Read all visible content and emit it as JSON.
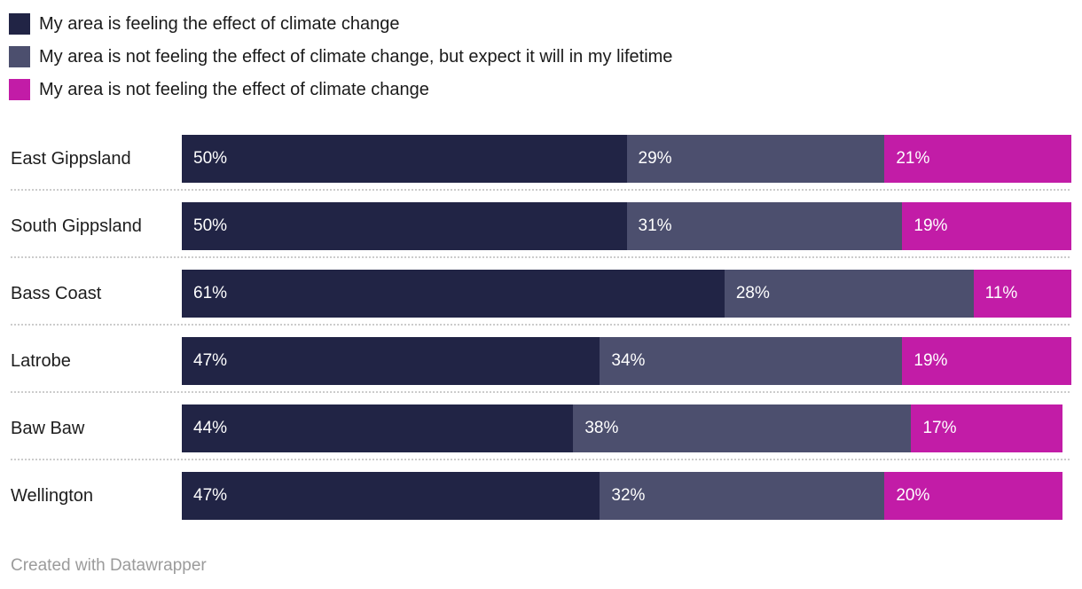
{
  "legend": {
    "items": [
      {
        "label": "My area is feeling the effect of climate change",
        "color": "#212445"
      },
      {
        "label": "My area is not feeling the effect of climate change, but expect it will in my lifetime",
        "color": "#4c4f6e"
      },
      {
        "label": "My area is not feeling the effect of climate change",
        "color": "#c21ca7"
      }
    ]
  },
  "footer": {
    "text": "Created with Datawrapper"
  },
  "colors": {
    "feeling": "#212445",
    "not_feeling_but_expect": "#4c4f6e",
    "not_feeling": "#c21ca7",
    "separator": "#cccccc",
    "bar_value_text": "#ffffff",
    "label_text": "#1d1d1d",
    "footer_text": "#9b9b9b"
  },
  "chart_data": {
    "type": "bar",
    "stacked": true,
    "orientation": "horizontal",
    "grid": false,
    "legend_position": "top",
    "xlim": [
      0,
      100
    ],
    "value_suffix": "%",
    "categories": [
      "East Gippsland",
      "South Gippsland",
      "Bass Coast",
      "Latrobe",
      "Baw Baw",
      "Wellington"
    ],
    "series": [
      {
        "name": "My area is feeling the effect of climate change",
        "color": "#212445",
        "values": [
          50,
          50,
          61,
          47,
          44,
          47
        ]
      },
      {
        "name": "My area is not feeling the effect of climate change, but expect it will in my lifetime",
        "color": "#4c4f6e",
        "values": [
          29,
          31,
          28,
          34,
          38,
          32
        ]
      },
      {
        "name": "My area is not feeling the effect of climate change",
        "color": "#c21ca7",
        "values": [
          21,
          19,
          11,
          19,
          17,
          20
        ]
      }
    ]
  }
}
